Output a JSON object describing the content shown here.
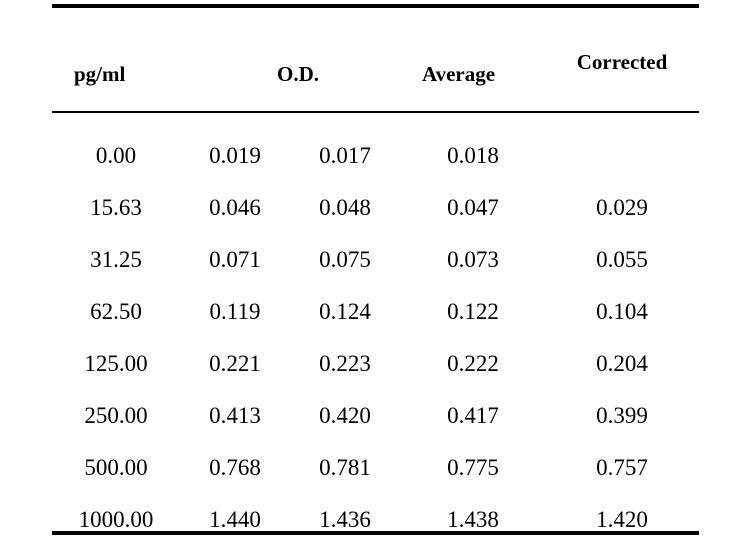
{
  "table": {
    "headers": {
      "concentration": "pg/ml",
      "od": "O.D.",
      "average": "Average",
      "corrected": "Corrected"
    },
    "rows": [
      {
        "conc": "0.00",
        "od1": "0.019",
        "od2": "0.017",
        "avg": "0.018",
        "corr": ""
      },
      {
        "conc": "15.63",
        "od1": "0.046",
        "od2": "0.048",
        "avg": "0.047",
        "corr": "0.029"
      },
      {
        "conc": "31.25",
        "od1": "0.071",
        "od2": "0.075",
        "avg": "0.073",
        "corr": "0.055"
      },
      {
        "conc": "62.50",
        "od1": "0.119",
        "od2": "0.124",
        "avg": "0.122",
        "corr": "0.104"
      },
      {
        "conc": "125.00",
        "od1": "0.221",
        "od2": "0.223",
        "avg": "0.222",
        "corr": "0.204"
      },
      {
        "conc": "250.00",
        "od1": "0.413",
        "od2": "0.420",
        "avg": "0.417",
        "corr": "0.399"
      },
      {
        "conc": "500.00",
        "od1": "0.768",
        "od2": "0.781",
        "avg": "0.775",
        "corr": "0.757"
      },
      {
        "conc": "1000.00",
        "od1": "1.440",
        "od2": "1.436",
        "avg": "1.438",
        "corr": "1.420"
      }
    ]
  }
}
